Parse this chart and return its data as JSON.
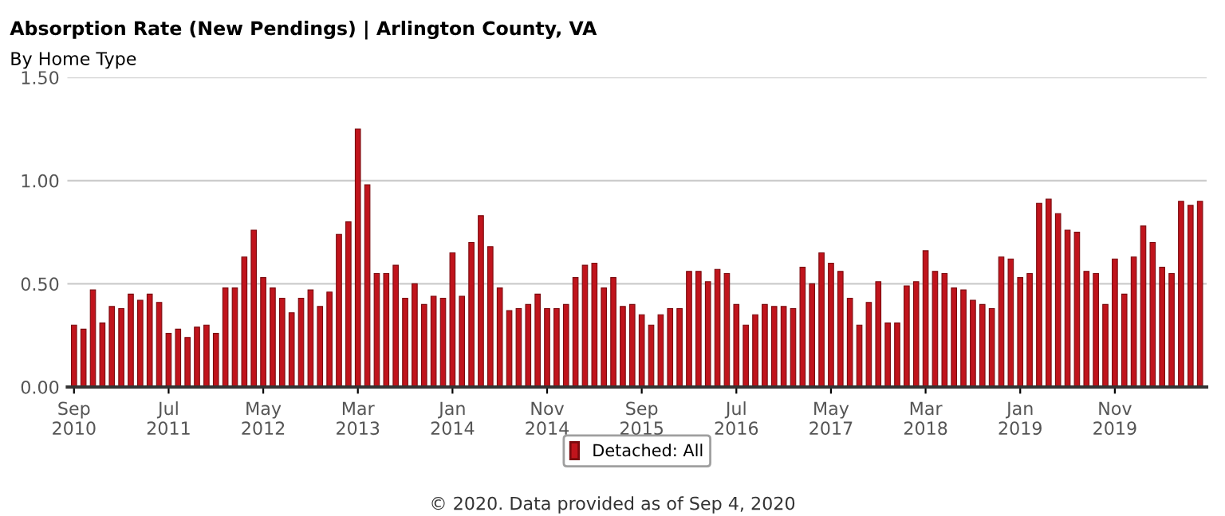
{
  "chart_data": {
    "type": "bar",
    "title": "Absorption Rate (New Pendings) | Arlington County, VA",
    "subtitle": "By Home Type",
    "categories": [
      "Sep\n2010",
      null,
      null,
      null,
      null,
      null,
      null,
      null,
      null,
      null,
      "Jul\n2011",
      null,
      null,
      null,
      null,
      null,
      null,
      null,
      null,
      null,
      "May\n2012",
      null,
      null,
      null,
      null,
      null,
      null,
      null,
      null,
      null,
      "Mar\n2013",
      null,
      null,
      null,
      null,
      null,
      null,
      null,
      null,
      null,
      "Jan\n2014",
      null,
      null,
      null,
      null,
      null,
      null,
      null,
      null,
      null,
      "Nov\n2014",
      null,
      null,
      null,
      null,
      null,
      null,
      null,
      null,
      null,
      "Sep\n2015",
      null,
      null,
      null,
      null,
      null,
      null,
      null,
      null,
      null,
      "Jul\n2016",
      null,
      null,
      null,
      null,
      null,
      null,
      null,
      null,
      null,
      "May\n2017",
      null,
      null,
      null,
      null,
      null,
      null,
      null,
      null,
      null,
      "Mar\n2018",
      null,
      null,
      null,
      null,
      null,
      null,
      null,
      null,
      null,
      "Jan\n2019",
      null,
      null,
      null,
      null,
      null,
      null,
      null,
      null,
      null,
      "Nov\n2019",
      null,
      null,
      null,
      null,
      null,
      null,
      null,
      null,
      null
    ],
    "series": [
      {
        "name": "Detached: All",
        "color": "#c0141c",
        "values": [
          0.3,
          0.28,
          0.47,
          0.31,
          0.39,
          0.38,
          0.45,
          0.42,
          0.45,
          0.41,
          0.26,
          0.28,
          0.24,
          0.29,
          0.3,
          0.26,
          0.48,
          0.48,
          0.63,
          0.76,
          0.53,
          0.48,
          0.43,
          0.36,
          0.43,
          0.47,
          0.39,
          0.46,
          0.74,
          0.8,
          1.25,
          0.98,
          0.55,
          0.55,
          0.59,
          0.43,
          0.5,
          0.4,
          0.44,
          0.43,
          0.65,
          0.44,
          0.7,
          0.83,
          0.68,
          0.48,
          0.37,
          0.38,
          0.4,
          0.45,
          0.38,
          0.38,
          0.4,
          0.53,
          0.59,
          0.6,
          0.48,
          0.53,
          0.39,
          0.4,
          0.35,
          0.3,
          0.35,
          0.38,
          0.38,
          0.56,
          0.56,
          0.51,
          0.57,
          0.55,
          0.4,
          0.3,
          0.35,
          0.4,
          0.39,
          0.39,
          0.38,
          0.58,
          0.5,
          0.65,
          0.6,
          0.56,
          0.43,
          0.3,
          0.41,
          0.51,
          0.31,
          0.31,
          0.49,
          0.51,
          0.66,
          0.56,
          0.55,
          0.48,
          0.47,
          0.42,
          0.4,
          0.38,
          0.63,
          0.62,
          0.53,
          0.55,
          0.89,
          0.91,
          0.84,
          0.76,
          0.75,
          0.56,
          0.55,
          0.4,
          0.62,
          0.45,
          0.63,
          0.78,
          0.7,
          0.58,
          0.55,
          0.9,
          0.88,
          0.9
        ]
      }
    ],
    "ylim": [
      0,
      1.5
    ],
    "yticks": [
      {
        "value": 0,
        "label": "0.00"
      },
      {
        "value": 0.5,
        "label": "0.50"
      },
      {
        "value": 1.0,
        "label": "1.00"
      },
      {
        "value": 1.5,
        "label": "1.50"
      }
    ],
    "grid": "y",
    "legend": "bottom",
    "annotations": [
      "© 2020. Data provided as of Sep 4, 2020"
    ]
  }
}
